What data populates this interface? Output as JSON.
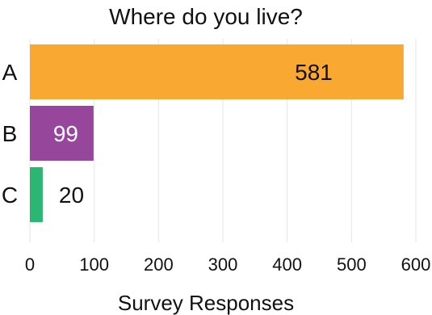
{
  "chart_data": {
    "type": "bar",
    "orientation": "horizontal",
    "title": "Where do you live?",
    "xlabel": "Survey Responses",
    "ylabel": "",
    "categories": [
      "A",
      "B",
      "C"
    ],
    "values": [
      581,
      99,
      20
    ],
    "bar_colors": [
      "#f9a831",
      "#96479b",
      "#2cb673"
    ],
    "label_colors": [
      "#111111",
      "#ffffff",
      "#111111"
    ],
    "xlim": [
      0,
      600
    ],
    "xticks": [
      0,
      100,
      200,
      300,
      400,
      500,
      600
    ],
    "grid": true
  }
}
